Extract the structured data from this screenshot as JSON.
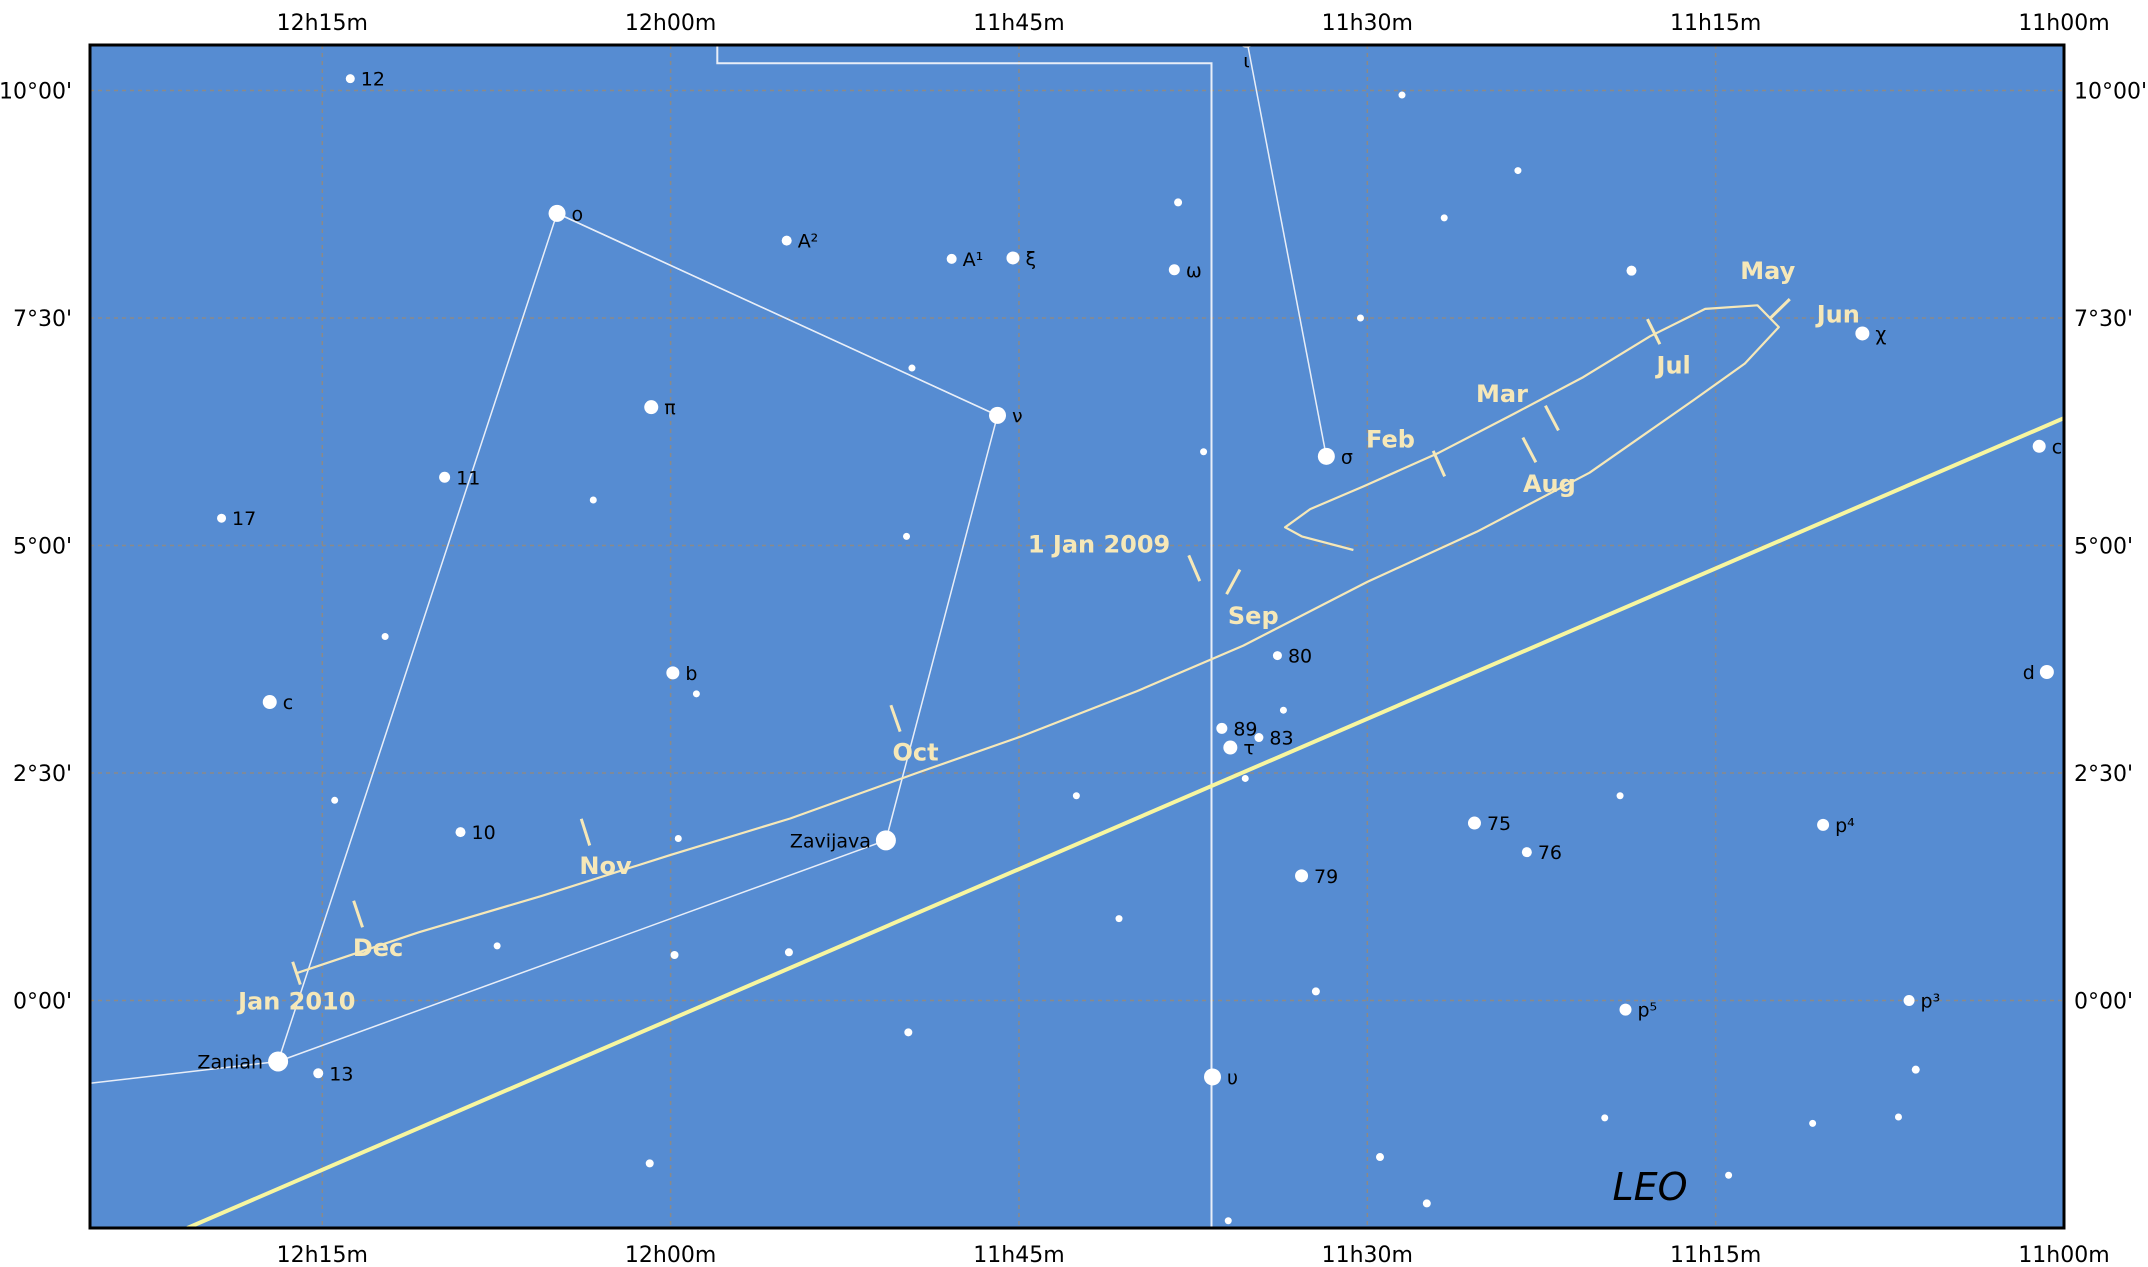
{
  "chart_data": {
    "type": "scatter",
    "constellation": "LEO",
    "colors": {
      "sky": "#568cd2",
      "ecliptic": "#f7f6a0",
      "path": "#f6e8b8",
      "lines": "#e8eef8",
      "grid": "#8a8a8a",
      "stars": "#ffffff"
    },
    "x_range_hours": [
      12.4167,
      11.0
    ],
    "y_range_deg": [
      -2.5,
      10.5
    ],
    "ra_ticks": [
      {
        "h": 12.25,
        "label": "12h15m"
      },
      {
        "h": 12.0,
        "label": "12h00m"
      },
      {
        "h": 11.75,
        "label": "11h45m"
      },
      {
        "h": 11.5,
        "label": "11h30m"
      },
      {
        "h": 11.25,
        "label": "11h15m"
      },
      {
        "h": 11.0,
        "label": "11h00m"
      }
    ],
    "dec_ticks": [
      {
        "d": 10.0,
        "label": "10°00'"
      },
      {
        "d": 7.5,
        "label": "7°30'"
      },
      {
        "d": 5.0,
        "label": "5°00'"
      },
      {
        "d": 2.5,
        "label": "2°30'"
      },
      {
        "d": 0.0,
        "label": "0°00'"
      }
    ],
    "stars": [
      {
        "ra": 12.2299,
        "dec": 10.13,
        "r": 4.5,
        "label": "12",
        "lp": "r"
      },
      {
        "ra": 11.5867,
        "dec": 10.57,
        "r": 9,
        "label": "ι",
        "lp": "b"
      },
      {
        "ra": 12.0815,
        "dec": 8.65,
        "r": 8.5,
        "label": "ο",
        "lp": "r"
      },
      {
        "ra": 11.9167,
        "dec": 8.35,
        "r": 5,
        "label": "A²",
        "lp": "r"
      },
      {
        "ra": 11.7983,
        "dec": 8.15,
        "r": 5,
        "label": "A¹",
        "lp": "r"
      },
      {
        "ra": 11.7543,
        "dec": 8.16,
        "r": 6.5,
        "label": "ξ",
        "lp": "r"
      },
      {
        "ra": 11.6385,
        "dec": 8.03,
        "r": 5.5,
        "label": "ω",
        "lp": "r"
      },
      {
        "ra": 11.7654,
        "dec": 6.43,
        "r": 8.5,
        "label": "ν",
        "lp": "r"
      },
      {
        "ra": 12.0139,
        "dec": 6.52,
        "r": 7,
        "label": "π",
        "lp": "r"
      },
      {
        "ra": 12.1622,
        "dec": 5.75,
        "r": 5.5,
        "label": "11",
        "lp": "r"
      },
      {
        "ra": 12.3223,
        "dec": 5.3,
        "r": 4.5,
        "label": "17",
        "lp": "r"
      },
      {
        "ra": 11.5294,
        "dec": 5.98,
        "r": 8.5,
        "label": "σ",
        "lp": "r"
      },
      {
        "ra": 11.1447,
        "dec": 7.33,
        "r": 7,
        "label": "χ",
        "lp": "r"
      },
      {
        "ra": 11.0178,
        "dec": 6.09,
        "r": 6.5,
        "label": "c",
        "lp": "r"
      },
      {
        "ra": 11.0123,
        "dec": 3.61,
        "r": 7,
        "label": "d",
        "lp": "l"
      },
      {
        "ra": 12.2877,
        "dec": 3.28,
        "r": 7,
        "label": "c",
        "lp": "r"
      },
      {
        "ra": 11.9984,
        "dec": 3.6,
        "r": 6.5,
        "label": "b",
        "lp": "r"
      },
      {
        "ra": 11.5645,
        "dec": 3.79,
        "r": 4.5,
        "label": "80",
        "lp": "r"
      },
      {
        "ra": 11.6044,
        "dec": 2.99,
        "r": 5.5,
        "label": "89",
        "lp": "r"
      },
      {
        "ra": 11.5778,
        "dec": 2.89,
        "r": 4.5,
        "label": "83",
        "lp": "r"
      },
      {
        "ra": 11.5983,
        "dec": 2.78,
        "r": 7,
        "label": "τ",
        "lp": "r"
      },
      {
        "ra": 11.8455,
        "dec": 1.76,
        "r": 10,
        "label": "Zavijava",
        "lp": "l"
      },
      {
        "ra": 12.1508,
        "dec": 1.85,
        "r": 5,
        "label": "10",
        "lp": "r"
      },
      {
        "ra": 11.4231,
        "dec": 1.95,
        "r": 6.5,
        "label": "75",
        "lp": "r"
      },
      {
        "ra": 11.3855,
        "dec": 1.63,
        "r": 5,
        "label": "76",
        "lp": "r"
      },
      {
        "ra": 11.5472,
        "dec": 1.37,
        "r": 6.5,
        "label": "79",
        "lp": "r"
      },
      {
        "ra": 11.1729,
        "dec": 1.93,
        "r": 6,
        "label": "p⁴",
        "lp": "r"
      },
      {
        "ra": 11.3147,
        "dec": -0.1,
        "r": 6,
        "label": "p⁵",
        "lp": "r"
      },
      {
        "ra": 11.1112,
        "dec": 0.0,
        "r": 5.5,
        "label": "p³",
        "lp": "r"
      },
      {
        "ra": 12.2817,
        "dec": -0.67,
        "r": 10,
        "label": "Zaniah",
        "lp": "l"
      },
      {
        "ra": 12.2529,
        "dec": -0.8,
        "r": 5,
        "label": "13",
        "lp": "r"
      },
      {
        "ra": 11.6111,
        "dec": -0.84,
        "r": 8.5,
        "label": "υ",
        "lp": "r"
      },
      {
        "ra": 12.2049,
        "dec": 4.0,
        "r": 3.5
      },
      {
        "ra": 12.0555,
        "dec": 5.5,
        "r": 3.5
      },
      {
        "ra": 11.8268,
        "dec": 6.95,
        "r": 3.5
      },
      {
        "ra": 11.6358,
        "dec": 8.77,
        "r": 4
      },
      {
        "ra": 11.4751,
        "dec": 9.95,
        "r": 3.5
      },
      {
        "ra": 11.4448,
        "dec": 8.6,
        "r": 3.5
      },
      {
        "ra": 11.3919,
        "dec": 9.12,
        "r": 3.5
      },
      {
        "ra": 11.5049,
        "dec": 7.5,
        "r": 3.5
      },
      {
        "ra": 11.6175,
        "dec": 6.03,
        "r": 3.5
      },
      {
        "ra": 11.3104,
        "dec": 8.02,
        "r": 5
      },
      {
        "ra": 11.8307,
        "dec": 5.1,
        "r": 3.5
      },
      {
        "ra": 11.9815,
        "dec": 3.37,
        "r": 3.5
      },
      {
        "ra": 12.2411,
        "dec": 2.2,
        "r": 3.5
      },
      {
        "ra": 11.9945,
        "dec": 1.78,
        "r": 3.5
      },
      {
        "ra": 11.7088,
        "dec": 2.25,
        "r": 3.5
      },
      {
        "ra": 11.5602,
        "dec": 3.19,
        "r": 3.5
      },
      {
        "ra": 11.5876,
        "dec": 2.44,
        "r": 3.5
      },
      {
        "ra": 12.1245,
        "dec": 0.6,
        "r": 3.5
      },
      {
        "ra": 11.9972,
        "dec": 0.5,
        "r": 4
      },
      {
        "ra": 11.9151,
        "dec": 0.53,
        "r": 4
      },
      {
        "ra": 11.6782,
        "dec": 0.9,
        "r": 3.5
      },
      {
        "ra": 11.5369,
        "dec": 0.1,
        "r": 4
      },
      {
        "ra": 11.8294,
        "dec": -0.35,
        "r": 4
      },
      {
        "ra": 12.015,
        "dec": -1.79,
        "r": 4
      },
      {
        "ra": 11.5998,
        "dec": -2.42,
        "r": 3.5
      },
      {
        "ra": 11.4909,
        "dec": -1.72,
        "r": 4
      },
      {
        "ra": 11.4573,
        "dec": -2.23,
        "r": 4
      },
      {
        "ra": 11.3186,
        "dec": 2.25,
        "r": 3.5
      },
      {
        "ra": 11.3296,
        "dec": -1.29,
        "r": 3.5
      },
      {
        "ra": 11.1804,
        "dec": -1.35,
        "r": 3.5
      },
      {
        "ra": 11.2407,
        "dec": -1.92,
        "r": 3.5
      },
      {
        "ra": 11.1188,
        "dec": -1.28,
        "r": 3.5
      },
      {
        "ra": 11.1064,
        "dec": -0.76,
        "r": 4
      }
    ],
    "constellation_lines": [
      [
        [
          11.7654,
          6.43
        ],
        [
          12.0815,
          8.65
        ],
        [
          12.2817,
          -0.67
        ],
        [
          12.4167,
          -0.91
        ]
      ],
      [
        [
          12.0815,
          8.65
        ],
        [
          11.7654,
          6.43
        ],
        [
          11.8455,
          1.76
        ],
        [
          12.2817,
          -0.67
        ]
      ],
      [
        [
          11.5867,
          10.57
        ],
        [
          11.5294,
          5.98
        ]
      ]
    ],
    "boundary": [
      [
        11.9665,
        10.5
      ],
      [
        11.9665,
        10.3
      ],
      [
        11.6118,
        10.3
      ],
      [
        11.6118,
        -2.5
      ]
    ],
    "ecliptic": [
      [
        12.3468,
        -2.5
      ],
      [
        11.0,
        6.4
      ]
    ],
    "path": [
      [
        12.2685,
        0.3
      ],
      [
        12.1808,
        0.75
      ],
      [
        12.0925,
        1.15
      ],
      [
        12.0,
        1.6
      ],
      [
        11.9142,
        2.0
      ],
      [
        11.8233,
        2.5
      ],
      [
        11.7488,
        2.9
      ],
      [
        11.6652,
        3.4
      ],
      [
        11.589,
        3.9
      ],
      [
        11.5,
        4.6
      ],
      [
        11.4215,
        5.15
      ],
      [
        11.3405,
        5.8
      ],
      [
        11.2656,
        6.6
      ],
      [
        11.229,
        7.0
      ],
      [
        11.2047,
        7.4
      ],
      [
        11.22,
        7.64
      ],
      [
        11.2575,
        7.6
      ],
      [
        11.297,
        7.3
      ],
      [
        11.345,
        6.85
      ],
      [
        11.3945,
        6.45
      ],
      [
        11.4486,
        6.02
      ],
      [
        11.5025,
        5.65
      ],
      [
        11.541,
        5.4
      ],
      [
        11.559,
        5.2
      ],
      [
        11.547,
        5.1
      ],
      [
        11.51,
        4.95
      ]
    ],
    "path_end_tick": [
      12.2685,
      0.3
    ],
    "month_ticks": [
      {
        "ra": 11.6242,
        "dec": 4.75,
        "label": "1 Jan 2009",
        "lp": "al"
      },
      {
        "ra": 11.4486,
        "dec": 5.9,
        "label": "Feb",
        "lp": "al"
      },
      {
        "ra": 11.3675,
        "dec": 6.4,
        "label": "Mar",
        "lp": "al"
      },
      {
        "ra": 11.204,
        "dec": 7.6,
        "label": "May",
        "lp": "a"
      },
      {
        "ra": 11.2945,
        "dec": 7.35,
        "label": "Jul",
        "lp": "b"
      },
      {
        "ra": 11.3837,
        "dec": 6.05,
        "label": "Aug",
        "lp": "b"
      },
      {
        "ra": 11.5962,
        "dec": 4.6,
        "label": "Sep",
        "lp": "b"
      },
      {
        "ra": 11.8386,
        "dec": 3.1,
        "label": "Oct",
        "lp": "b"
      },
      {
        "ra": 12.0611,
        "dec": 1.85,
        "label": "Nov",
        "lp": "b"
      },
      {
        "ra": 12.2243,
        "dec": 0.95,
        "label": "Dec",
        "lp": "b"
      }
    ],
    "path_labels": [
      {
        "ra": 11.162,
        "dec": 7.55,
        "label": "Jun"
      },
      {
        "ra": 12.2683,
        "dec": 0.0,
        "label": "Jan 2010"
      }
    ]
  }
}
